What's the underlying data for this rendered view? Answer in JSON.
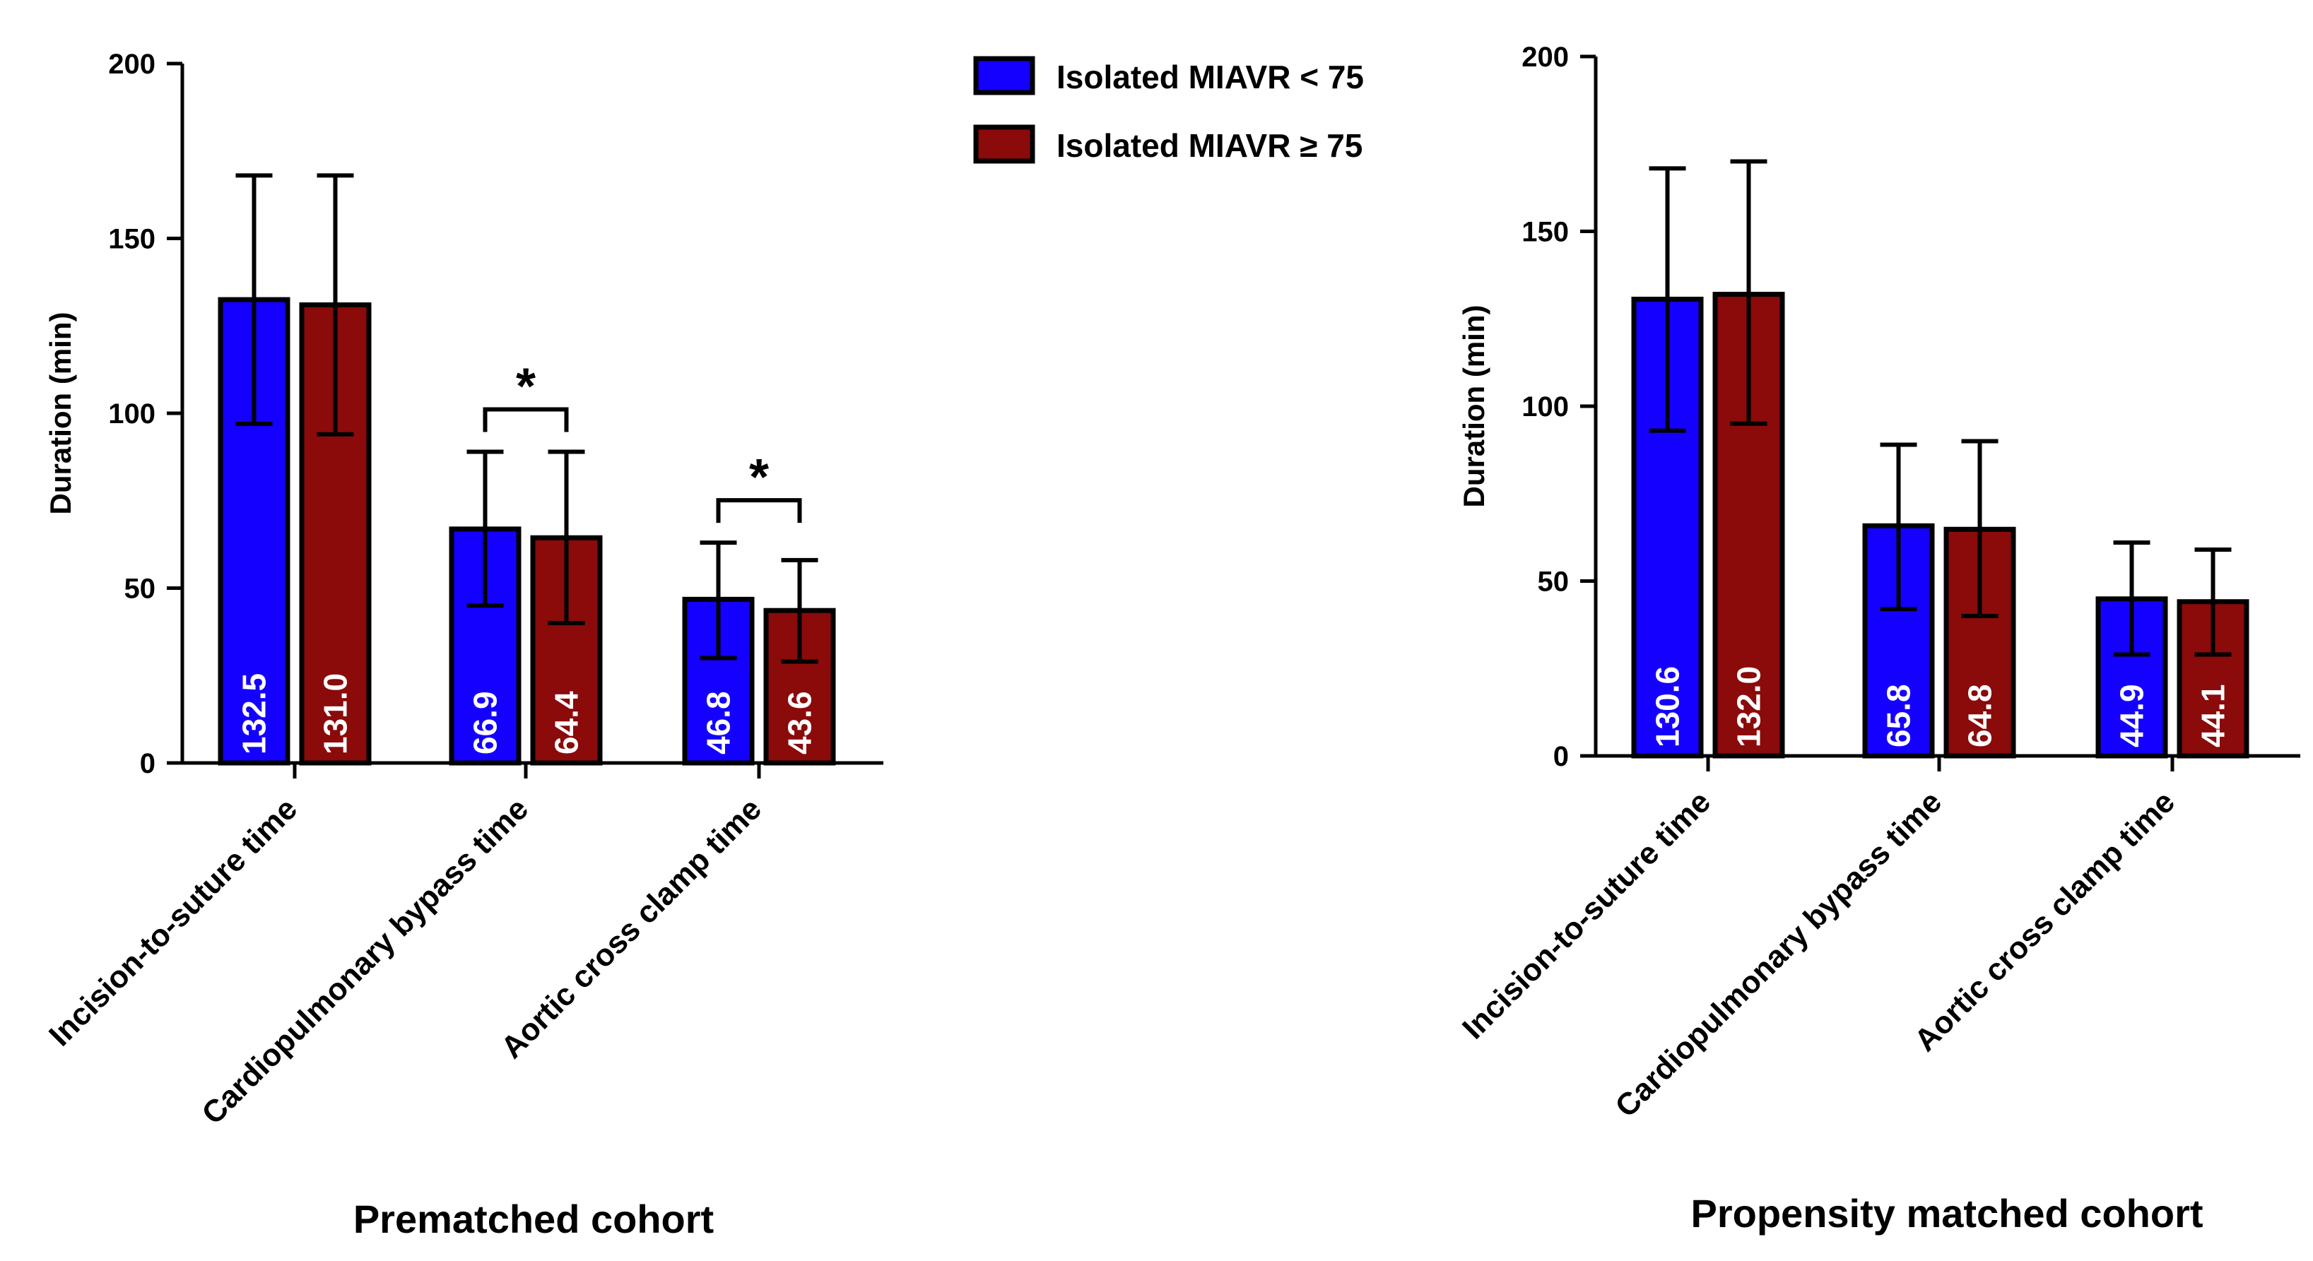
{
  "legend": [
    {
      "label": "Isolated MIAVR < 75",
      "color": "#1400ff"
    },
    {
      "label": "Isolated MIAVR ≥ 75",
      "color": "#8b0a0a"
    }
  ],
  "chart_data": [
    {
      "type": "bar",
      "title": "Prematched cohort",
      "ylabel": "Duration (min)",
      "xlabel": "",
      "ylim": [
        0,
        200
      ],
      "yticks": [
        0,
        50,
        100,
        150,
        200
      ],
      "categories": [
        "Incision-to-suture time",
        "Cardiopulmonary bypass time",
        "Aortic cross clamp time"
      ],
      "series": [
        {
          "name": "Isolated MIAVR < 75",
          "values": [
            132.5,
            66.9,
            46.8
          ],
          "labels": [
            "132.5",
            "66.9",
            "46.8"
          ],
          "err_low": [
            97,
            45,
            30
          ],
          "err_high": [
            168,
            89,
            63
          ]
        },
        {
          "name": "Isolated MIAVR ≥ 75",
          "values": [
            131.0,
            64.4,
            43.6
          ],
          "labels": [
            "131.0",
            "64.4",
            "43.6"
          ],
          "err_low": [
            94,
            40,
            29
          ],
          "err_high": [
            168,
            89,
            58
          ]
        }
      ],
      "significance": [
        {
          "category": "Cardiopulmonary bypass time",
          "symbol": "*"
        },
        {
          "category": "Aortic cross clamp time",
          "symbol": "*"
        }
      ]
    },
    {
      "type": "bar",
      "title": "Propensity matched cohort",
      "ylabel": "Duration (min)",
      "xlabel": "",
      "ylim": [
        0,
        200
      ],
      "yticks": [
        0,
        50,
        100,
        150,
        200
      ],
      "categories": [
        "Incision-to-suture time",
        "Cardiopulmonary bypass time",
        "Aortic cross clamp time"
      ],
      "series": [
        {
          "name": "Isolated MIAVR < 75",
          "values": [
            130.6,
            65.8,
            44.9
          ],
          "labels": [
            "130.6",
            "65.8",
            "44.9"
          ],
          "err_low": [
            93,
            42,
            29
          ],
          "err_high": [
            168,
            89,
            61
          ]
        },
        {
          "name": "Isolated MIAVR ≥ 75",
          "values": [
            132.0,
            64.8,
            44.1
          ],
          "labels": [
            "132.0",
            "64.8",
            "44.1"
          ],
          "err_low": [
            95,
            40,
            29
          ],
          "err_high": [
            170,
            90,
            59
          ]
        }
      ],
      "significance": []
    }
  ]
}
